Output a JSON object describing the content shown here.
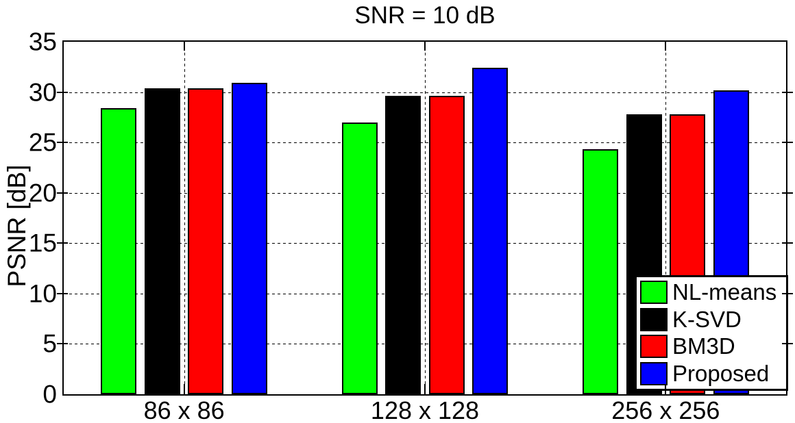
{
  "title": "SNR = 10 dB",
  "ylabel": "PSNR [dB]",
  "chart_data": {
    "type": "bar",
    "title": "SNR = 10 dB",
    "xlabel": "",
    "ylabel": "PSNR [dB]",
    "categories": [
      "86 x 86",
      "128 x 128",
      "256 x 256"
    ],
    "series": [
      {
        "name": "NL-means",
        "color": "#00ff00",
        "values": [
          28.4,
          27.0,
          24.3
        ]
      },
      {
        "name": "K-SVD",
        "color": "#000000",
        "values": [
          30.4,
          29.6,
          27.8
        ]
      },
      {
        "name": "BM3D",
        "color": "#ff0000",
        "values": [
          30.4,
          29.6,
          27.8
        ]
      },
      {
        "name": "Proposed",
        "color": "#0000ff",
        "values": [
          30.9,
          32.4,
          30.2
        ]
      }
    ],
    "ylim": [
      0,
      35
    ],
    "yticks": [
      0,
      5,
      10,
      15,
      20,
      25,
      30,
      35
    ],
    "grid": true,
    "grid_style": "dotted",
    "legend_position": "bottom-right",
    "axis_color": "#000000",
    "background_color": "#ffffff"
  }
}
